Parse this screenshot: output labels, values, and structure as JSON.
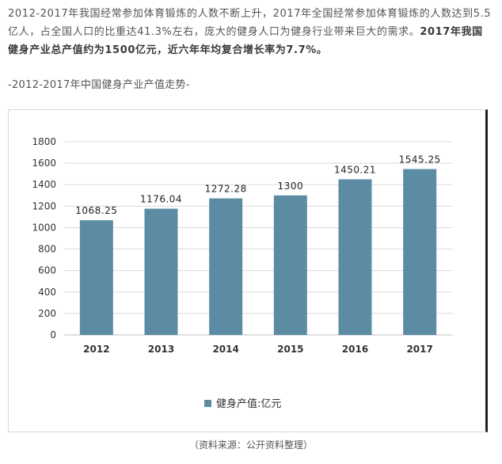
{
  "article": {
    "paragraph_normal": "2012-2017年我国经常参加体育锻炼的人数不断上升，2017年全国经常参加体育锻炼的人数达到5.5亿人，占全国人口的比重达41.3%左右，庞大的健身人口为健身行业带来巨大的需求。",
    "paragraph_bold": "2017年我国健身产业总产值约为1500亿元，近六年年均复合增长率为7.7%。",
    "chart_subtitle": "-2012-2017年中国健身产业产值走势-",
    "source_caption": "（资料来源：公开资料整理）"
  },
  "chart_data": {
    "type": "bar",
    "categories": [
      "2012",
      "2013",
      "2014",
      "2015",
      "2016",
      "2017"
    ],
    "series": [
      {
        "name": "健身产值:亿元",
        "values": [
          1068.25,
          1176.04,
          1272.28,
          1300,
          1450.21,
          1545.25
        ]
      }
    ],
    "data_labels": [
      "1068.25",
      "1176.04",
      "1272.28",
      "1300",
      "1450.21",
      "1545.25"
    ],
    "y_ticks": [
      "0",
      "200",
      "400",
      "600",
      "800",
      "1000",
      "1200",
      "1400",
      "1600",
      "1800"
    ],
    "ylim": [
      0,
      1800
    ],
    "grid": true,
    "legend_position": "bottom-left",
    "bar_color": "#5b8ca3",
    "grid_color": "#d9d9d9"
  }
}
